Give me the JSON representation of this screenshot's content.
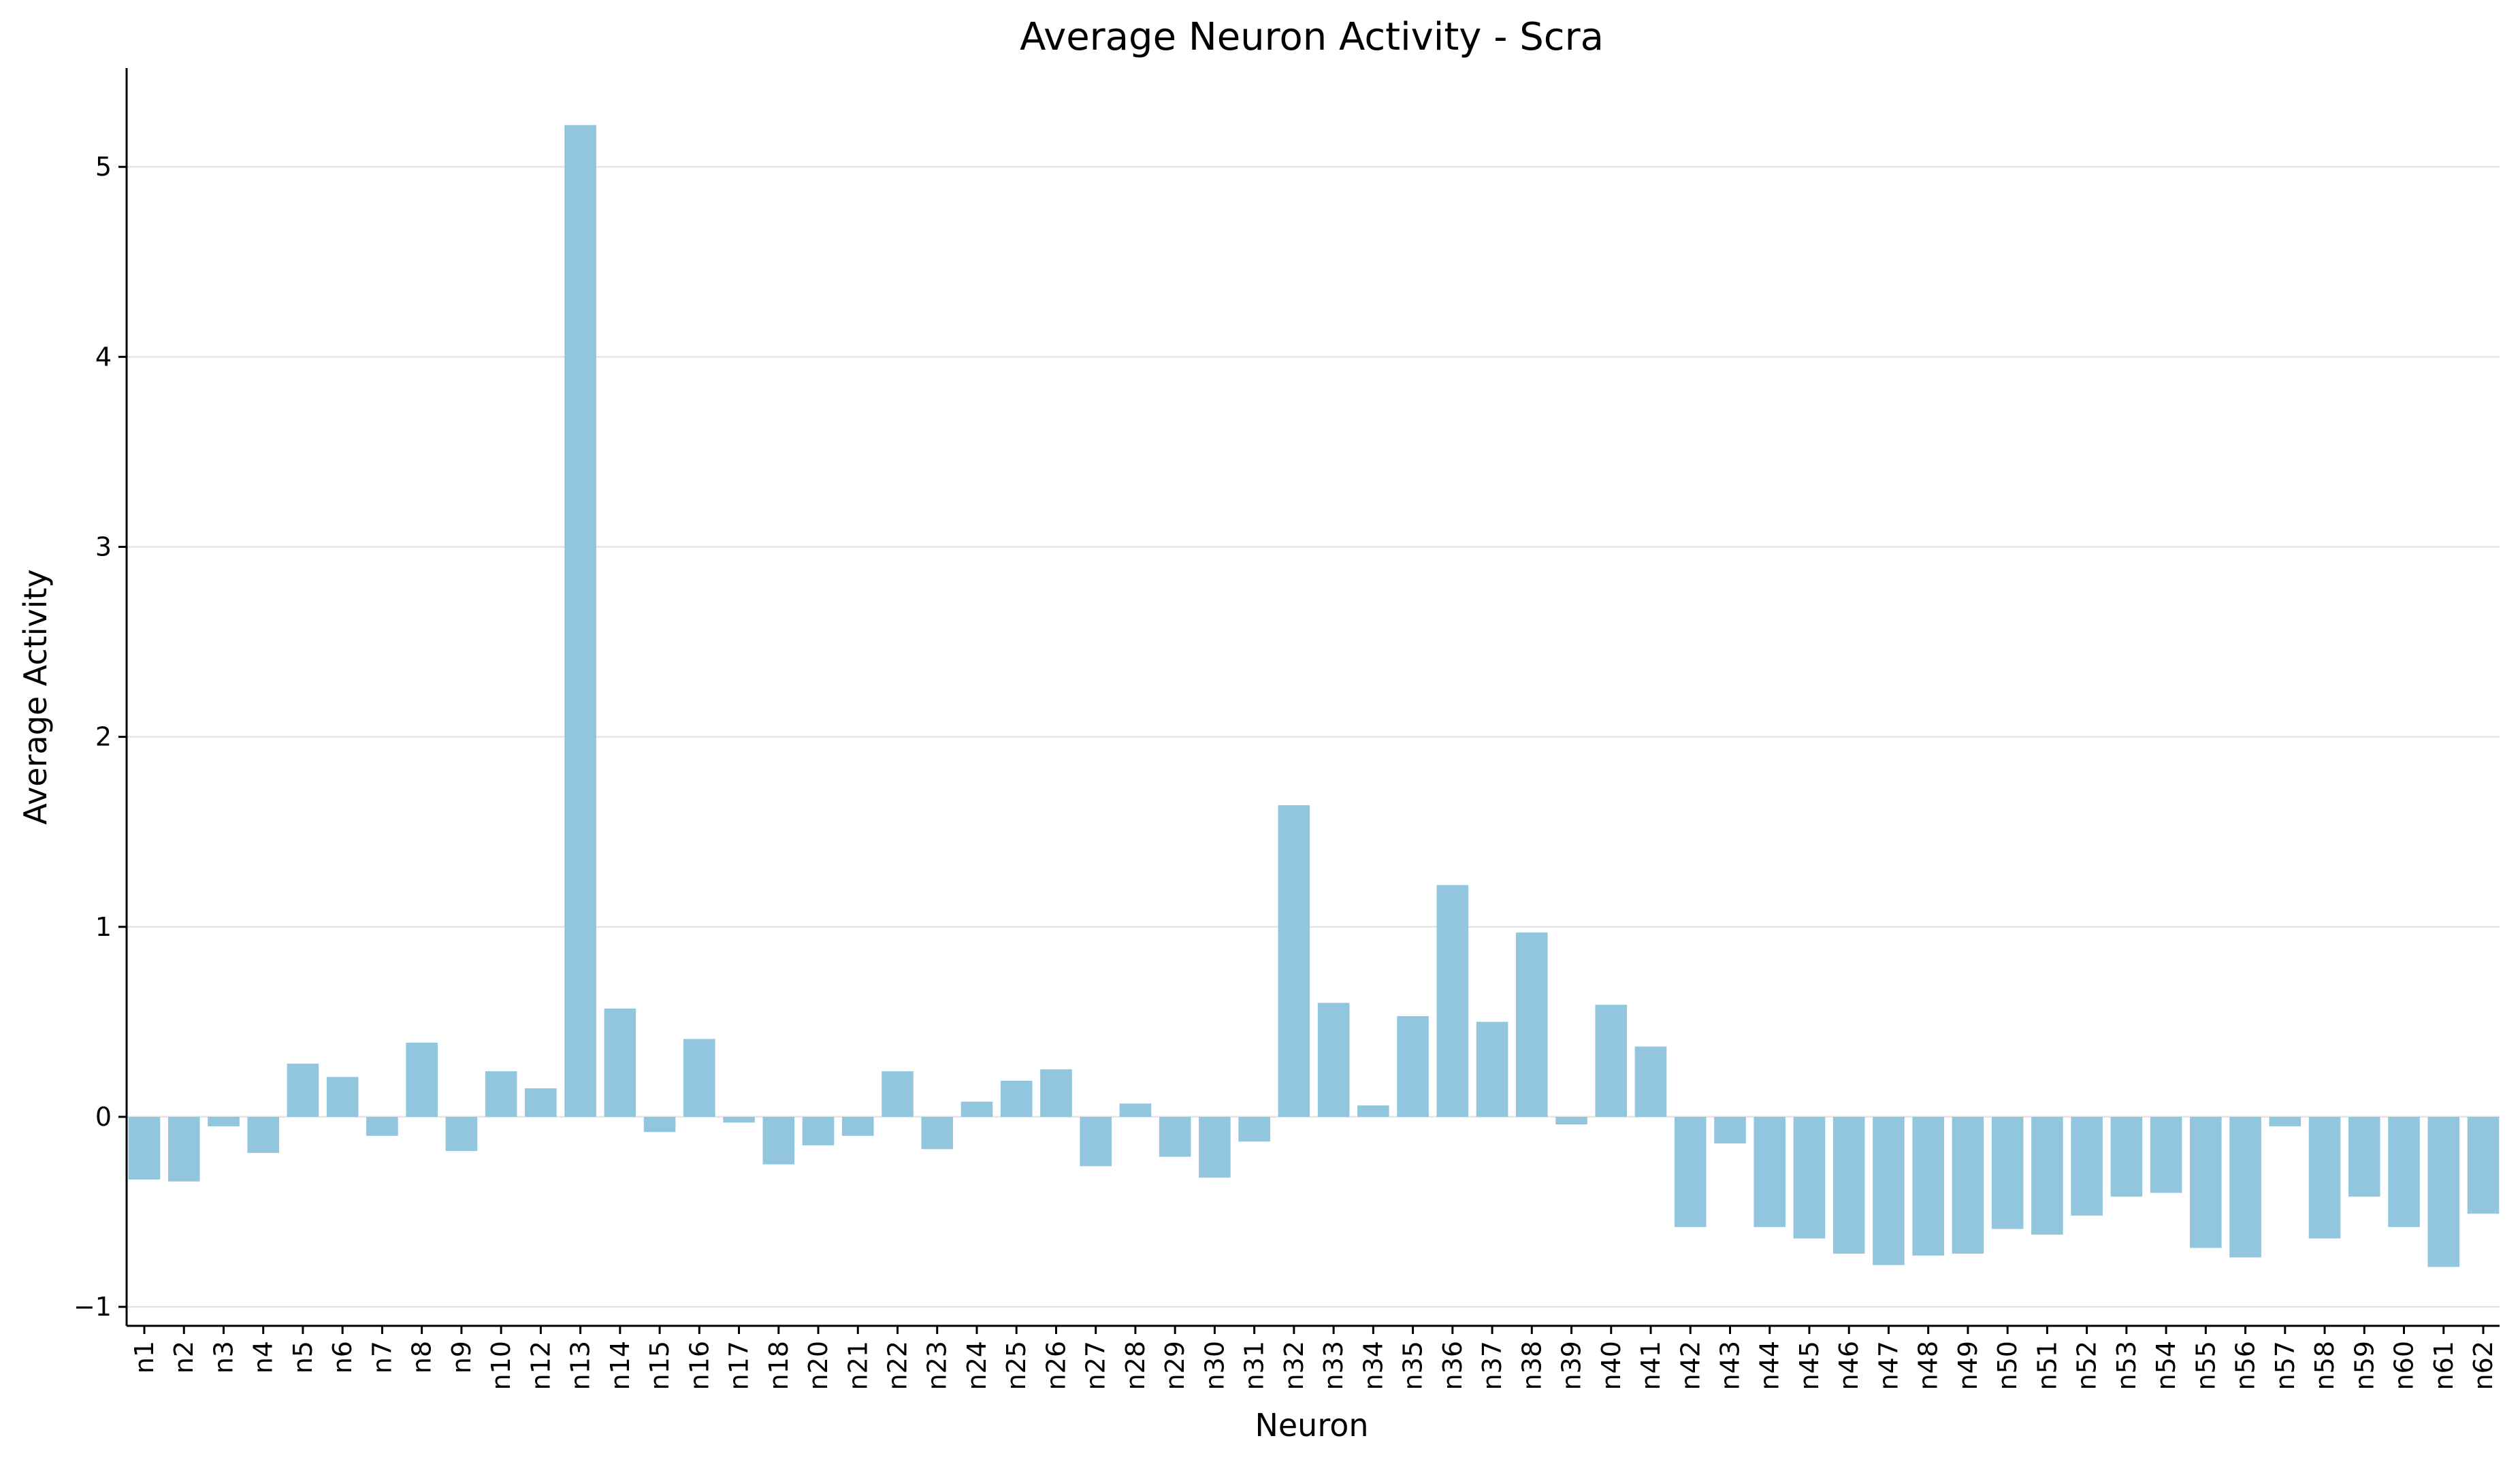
{
  "chart_data": {
    "type": "bar",
    "title": "Average Neuron Activity - Scra",
    "xlabel": "Neuron",
    "ylabel": "Average Activity",
    "ylim": [
      -1.1,
      5.52
    ],
    "yticks": [
      -1,
      0,
      1,
      2,
      3,
      4,
      5
    ],
    "ytick_labels": [
      "−1",
      "0",
      "1",
      "2",
      "3",
      "4",
      "5"
    ],
    "grid": "horizontal",
    "bar_color": "#92c6de",
    "categories": [
      "n1",
      "n2",
      "n3",
      "n4",
      "n5",
      "n6",
      "n7",
      "n8",
      "n9",
      "n10",
      "n12",
      "n13",
      "n14",
      "n15",
      "n16",
      "n17",
      "n18",
      "n20",
      "n21",
      "n22",
      "n23",
      "n24",
      "n25",
      "n26",
      "n27",
      "n28",
      "n29",
      "n30",
      "n31",
      "n32",
      "n33",
      "n34",
      "n35",
      "n36",
      "n37",
      "n38",
      "n39",
      "n40",
      "n41",
      "n42",
      "n43",
      "n44",
      "n45",
      "n46",
      "n47",
      "n48",
      "n49",
      "n50",
      "n51",
      "n52",
      "n53",
      "n54",
      "n55",
      "n56",
      "n57",
      "n58",
      "n59",
      "n60",
      "n61",
      "n62"
    ],
    "values": [
      -0.33,
      -0.34,
      -0.05,
      -0.19,
      0.28,
      0.21,
      -0.1,
      0.39,
      -0.18,
      0.24,
      0.15,
      5.22,
      0.57,
      -0.08,
      0.41,
      -0.03,
      -0.25,
      -0.15,
      -0.1,
      0.24,
      -0.17,
      0.08,
      0.19,
      0.25,
      -0.26,
      0.07,
      -0.21,
      -0.32,
      -0.13,
      1.64,
      0.6,
      0.06,
      0.53,
      1.22,
      0.5,
      0.97,
      -0.04,
      0.59,
      0.37,
      -0.58,
      -0.14,
      -0.58,
      -0.64,
      -0.72,
      -0.78,
      -0.73,
      -0.72,
      -0.59,
      -0.62,
      -0.52,
      -0.42,
      -0.4,
      -0.69,
      -0.74,
      -0.05,
      -0.64,
      -0.42,
      -0.58,
      -0.79,
      -0.51
    ]
  }
}
